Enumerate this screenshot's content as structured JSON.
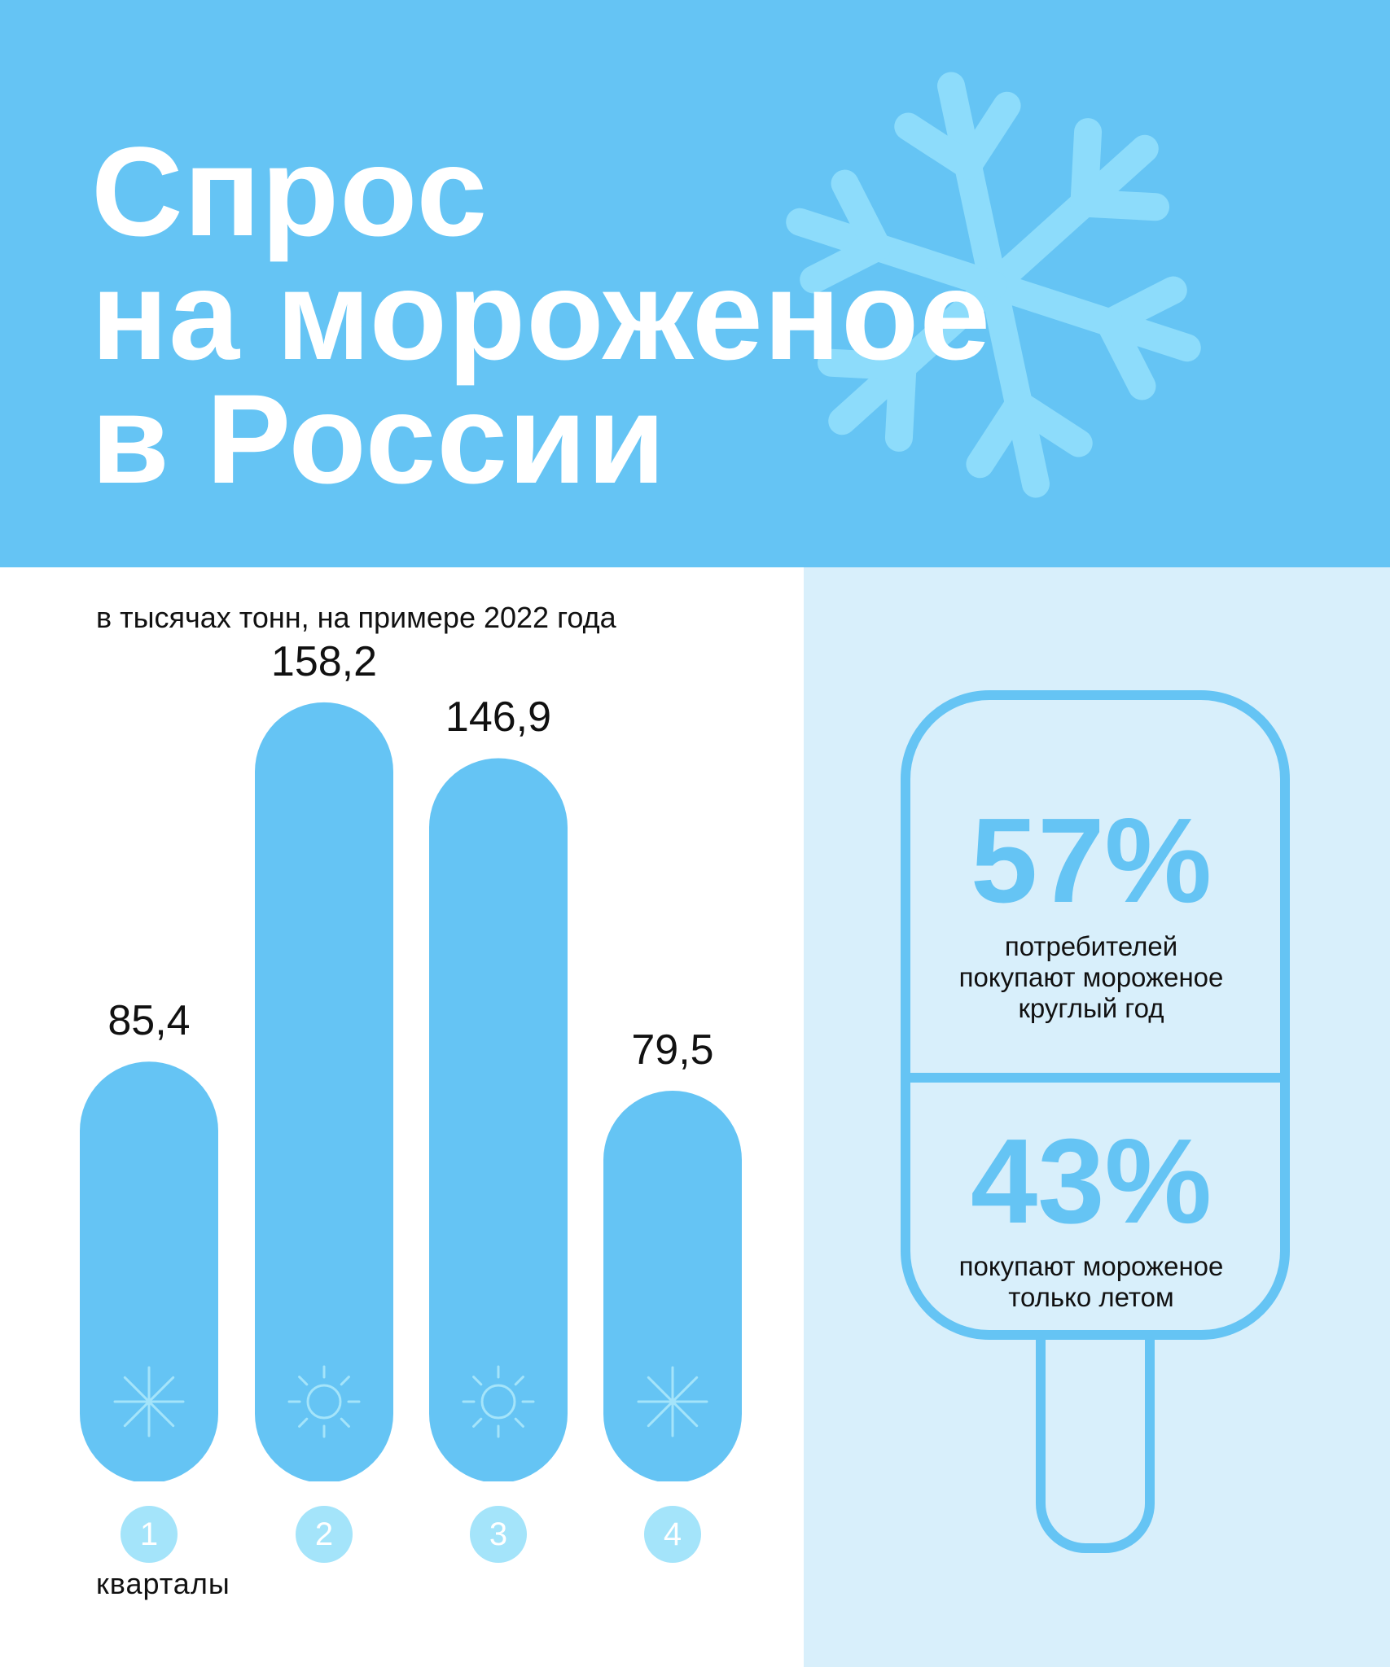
{
  "colors": {
    "header_bg": "#65c4f4",
    "bar": "#65c4f4",
    "panel_bg": "#d8effb",
    "badge": "#a4e4fa",
    "snowflake": "#8ddcfb"
  },
  "title_lines": [
    "Спрос",
    "на мороженое",
    "в России"
  ],
  "chart_data": {
    "type": "bar",
    "title": "Спрос на мороженое в России",
    "subtitle": "в тысячах тонн, на примере 2022 года",
    "xlabel": "кварталы",
    "ylabel": "",
    "categories": [
      "1",
      "2",
      "3",
      "4"
    ],
    "values": [
      85.4,
      158.2,
      146.9,
      79.5
    ],
    "value_labels": [
      "85,4",
      "158,2",
      "146,9",
      "79,5"
    ],
    "season_icons": [
      "snowflake-icon",
      "sun-icon",
      "sun-icon",
      "snowflake-icon"
    ],
    "ylim": [
      0,
      160
    ],
    "grid": false
  },
  "stats": [
    {
      "percent": "57%",
      "lines": [
        "потребителей",
        "покупают мороженое",
        "круглый год"
      ]
    },
    {
      "percent": "43%",
      "lines": [
        "покупают мороженое",
        "только летом"
      ]
    }
  ]
}
